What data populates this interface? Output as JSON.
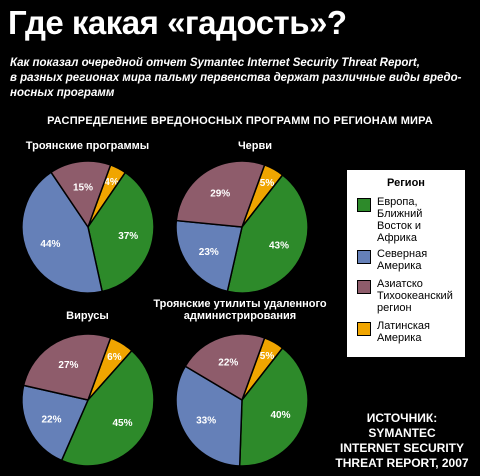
{
  "header": {
    "title": "Где какая «гадость»?",
    "subtitle_lines": [
      "Как показал очередной отчет Symantec Internet Security Threat Report,",
      "в разных регионах мира пальму первенства держат различные виды вредо-",
      "носных программ"
    ]
  },
  "chart_section_title": "РАСПРЕДЕЛЕНИЕ ВРЕДОНОСНЫХ ПРОГРАММ ПО РЕГИОНАМ МИРА",
  "legend": {
    "title": "Регион",
    "items": [
      {
        "label_lines": [
          "Европа,",
          "Ближний",
          "Восток и",
          "Африка"
        ],
        "color": "#2d8a2a"
      },
      {
        "label_lines": [
          "Северная",
          "Америка"
        ],
        "color": "#6580b8"
      },
      {
        "label_lines": [
          "Азиатско",
          "Тихоокеанский",
          "регион"
        ],
        "color": "#8e5c6b"
      },
      {
        "label_lines": [
          "Латинская",
          "Америка"
        ],
        "color": "#f0a500"
      }
    ]
  },
  "source_lines": [
    "ИСТОЧНИК: SYMANTEC",
    "INTERNET SECURITY",
    "THREAT REPORT, 2007"
  ],
  "chart_data": [
    {
      "type": "pie",
      "title": "Троянские программы",
      "categories": [
        "Европа, Ближний Восток и Африка",
        "Северная Америка",
        "Азиатско Тихоокеанский регион",
        "Латинская Америка"
      ],
      "values": [
        37,
        44,
        15,
        4
      ],
      "labels": [
        "37%",
        "44%",
        "15%",
        "4%"
      ]
    },
    {
      "type": "pie",
      "title": "Черви",
      "categories": [
        "Европа, Ближний Восток и Африка",
        "Северная Америка",
        "Азиатско Тихоокеанский регион",
        "Латинская Америка"
      ],
      "values": [
        43,
        23,
        29,
        5
      ],
      "labels": [
        "43%",
        "23%",
        "29%",
        "5%"
      ]
    },
    {
      "type": "pie",
      "title": "Вирусы",
      "categories": [
        "Европа, Ближний Восток и Африка",
        "Северная Америка",
        "Азиатско Тихоокеанский регион",
        "Латинская Америка"
      ],
      "values": [
        45,
        22,
        27,
        6
      ],
      "labels": [
        "45%",
        "22%",
        "27%",
        "6%"
      ]
    },
    {
      "type": "pie",
      "title": "Троянские утилиты удаленного администрирования",
      "title_lines": [
        "Троянские утилиты удаленного",
        "администрирования"
      ],
      "categories": [
        "Европа, Ближний Восток и Африка",
        "Северная Америка",
        "Азиатско Тихоокеанский регион",
        "Латинская Америка"
      ],
      "values": [
        40,
        33,
        22,
        5
      ],
      "labels": [
        "40%",
        "33%",
        "22%",
        "5%"
      ]
    }
  ]
}
